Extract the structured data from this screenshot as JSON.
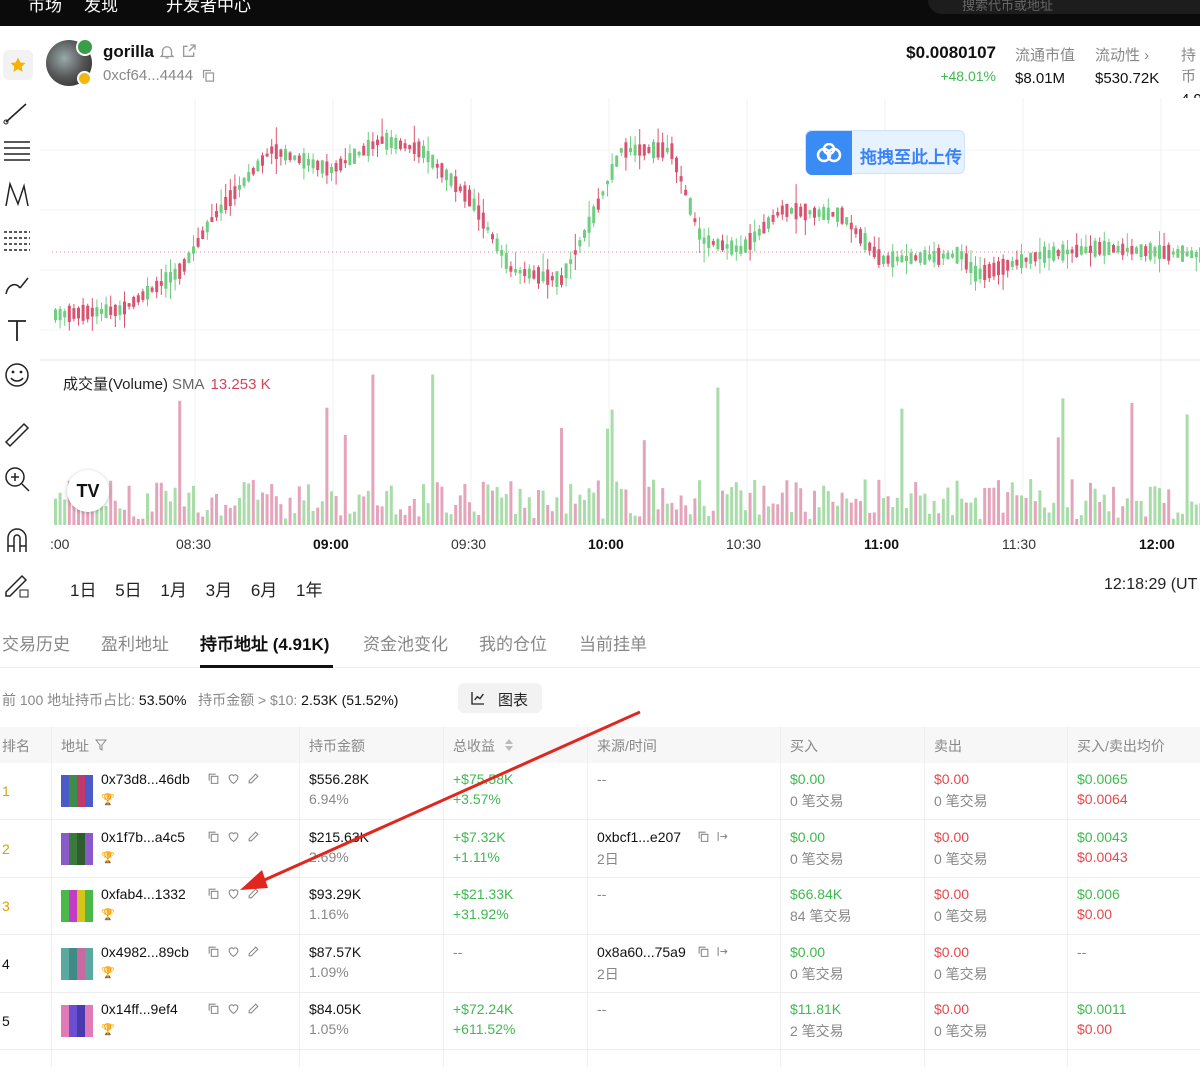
{
  "topbar": {
    "nav_1": "市场",
    "nav_2": "发现",
    "nav_3": "开发者中心",
    "search_placeholder": "搜索代币或地址"
  },
  "token": {
    "name": "gorilla",
    "address": "0xcf64...4444",
    "price": "$0.0080107",
    "change": "+48.01%",
    "stats": [
      {
        "label": "流通市值",
        "value": "$8.01M"
      },
      {
        "label": "流动性 ›",
        "value": "$530.72K"
      },
      {
        "label": "持币",
        "value": "4.9"
      }
    ]
  },
  "chart": {
    "upload_label": "拖拽至此上传",
    "volume_label": "成交量(Volume)",
    "sma_label": "SMA",
    "sma_value": "13.253 K",
    "time_labels": [
      ":00",
      "08:30",
      "09:00",
      "09:30",
      "10:00",
      "10:30",
      "11:00",
      "11:30",
      "12:00"
    ],
    "ranges": [
      "1日",
      "5日",
      "1月",
      "3月",
      "6月",
      "1年"
    ],
    "clock": "12:18:29 (UT",
    "colors": {
      "up": "#6fcf80",
      "down": "#d9526f",
      "vol_up": "#a8dca8",
      "vol_down": "#e4a5bb"
    }
  },
  "tabs": [
    "交易历史",
    "盈利地址",
    "持币地址 (4.91K)",
    "资金池变化",
    "我的仓位",
    "当前挂单"
  ],
  "summary": {
    "top100_label": "前 100 地址持币占比:",
    "top100_value": "53.50%",
    "holders_label": "持币金额 > $10:",
    "holders_value": "2.53K (51.52%)",
    "chart_button": "图表"
  },
  "table": {
    "headers": [
      "排名",
      "地址",
      "持币金额",
      "总收益",
      "来源/时间",
      "买入",
      "卖出",
      "买入/卖出均价"
    ],
    "rows": [
      {
        "rank": "1",
        "addr": "0x73d8...46db",
        "hold": "$556.28K",
        "hold_pct": "6.94%",
        "pnl": "+$75.58K",
        "pnl_pct": "+3.57%",
        "src": "--",
        "src_time": "",
        "buy": "$0.00",
        "buy_n": "0 笔交易",
        "sell": "$0.00",
        "sell_n": "0 笔交易",
        "avg_buy": "$0.0065",
        "avg_sell": "$0.0064"
      },
      {
        "rank": "2",
        "addr": "0x1f7b...a4c5",
        "hold": "$215.63K",
        "hold_pct": "2.69%",
        "pnl": "+$7.32K",
        "pnl_pct": "+1.11%",
        "src": "0xbcf1...e207",
        "src_time": "2日",
        "buy": "$0.00",
        "buy_n": "0 笔交易",
        "sell": "$0.00",
        "sell_n": "0 笔交易",
        "avg_buy": "$0.0043",
        "avg_sell": "$0.0043"
      },
      {
        "rank": "3",
        "addr": "0xfab4...1332",
        "hold": "$93.29K",
        "hold_pct": "1.16%",
        "pnl": "+$21.33K",
        "pnl_pct": "+31.92%",
        "src": "--",
        "src_time": "",
        "buy": "$66.84K",
        "buy_n": "84 笔交易",
        "sell": "$0.00",
        "sell_n": "0 笔交易",
        "avg_buy": "$0.006",
        "avg_sell": "$0.00"
      },
      {
        "rank": "4",
        "addr": "0x4982...89cb",
        "hold": "$87.57K",
        "hold_pct": "1.09%",
        "pnl": "--",
        "pnl_pct": "",
        "src": "0x8a60...75a9",
        "src_time": "2日",
        "buy": "$0.00",
        "buy_n": "0 笔交易",
        "sell": "$0.00",
        "sell_n": "0 笔交易",
        "avg_buy": "--",
        "avg_sell": ""
      },
      {
        "rank": "5",
        "addr": "0x14ff...9ef4",
        "hold": "$84.05K",
        "hold_pct": "1.05%",
        "pnl": "+$72.24K",
        "pnl_pct": "+611.52%",
        "src": "--",
        "src_time": "",
        "buy": "$11.81K",
        "buy_n": "2 笔交易",
        "sell": "$0.00",
        "sell_n": "0 笔交易",
        "avg_buy": "$0.0011",
        "avg_sell": "$0.00"
      }
    ]
  }
}
